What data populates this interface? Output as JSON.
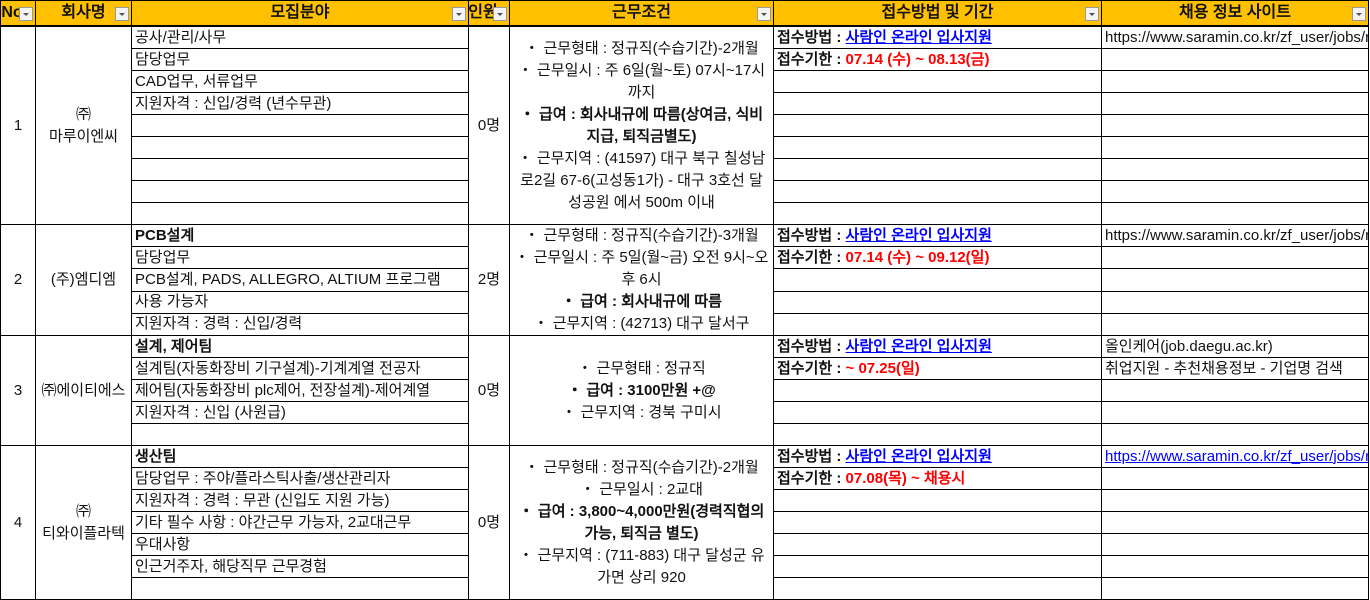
{
  "header": {
    "no": "No",
    "company": "회사명",
    "field": "모집분야",
    "count": "인원",
    "conditions": "근무조건",
    "apply": "접수방법 및 기간",
    "site": "채용 정보 사이트"
  },
  "colors": {
    "header_bg": "#ffc000",
    "method": "#0000ff",
    "deadline": "#ff0000"
  },
  "rows": [
    {
      "no": "1",
      "company": [
        "㈜",
        "마루이엔씨"
      ],
      "count": "0명",
      "fields": [
        {
          "text": "공사/관리/사무",
          "bold": false
        },
        {
          "text": "담당업무",
          "bold": false
        },
        {
          "text": "CAD업무, 서류업무",
          "bold": false
        },
        {
          "text": "지원자격 : 신입/경력 (년수무관)",
          "bold": false
        },
        {
          "text": "",
          "bold": false
        },
        {
          "text": "",
          "bold": false
        },
        {
          "text": "",
          "bold": false
        },
        {
          "text": "",
          "bold": false
        },
        {
          "text": "",
          "bold": false
        }
      ],
      "conditions": [
        {
          "text": "・ 근무형태 : 정규직(수습기간)-2개월",
          "bold": false
        },
        {
          "text": "・ 근무일시 : 주 6일(월~토) 07시~17시 까지",
          "bold": false
        },
        {
          "text": "・ 급여 : 회사내규에 따름(상여금, 식비지급, 퇴직금별도)",
          "bold": true
        },
        {
          "text": "・ 근무지역 : (41597) 대구 북구 칠성남로2길 67-6(고성동1가) - 대구 3호선 달성공원 에서 500m 이내",
          "bold": false
        }
      ],
      "method_label": "접수방법 : ",
      "method": "사람인 온라인 입사지원",
      "deadline_label": "접수기한 : ",
      "deadline": " 07.14 (수) ~ 08.13(금)",
      "site": [
        {
          "text": "https://www.saramin.co.kr/zf_user/jobs/relay/view",
          "link": false
        }
      ]
    },
    {
      "no": "2",
      "company": [
        "(주)엠디엠"
      ],
      "count": "2명",
      "fields": [
        {
          "text": "PCB설계",
          "bold": true
        },
        {
          "text": "담당업무",
          "bold": false
        },
        {
          "text": "PCB설계, PADS, ALLEGRO, ALTIUM 프로그램",
          "bold": false
        },
        {
          "text": "사용 가능자",
          "bold": false
        },
        {
          "text": "지원자격 : 경력 : 신입/경력",
          "bold": false
        }
      ],
      "conditions": [
        {
          "text": "・ 근무형태 : 정규직(수습기간)-3개월",
          "bold": false
        },
        {
          "text": "・ 근무일시 : 주 5일(월~금) 오전 9시~오후 6시",
          "bold": false
        },
        {
          "text": "・ 급여 : 회사내규에 따름",
          "bold": true
        },
        {
          "text": "・ 근무지역 : (42713) 대구 달서구",
          "bold": false
        }
      ],
      "method_label": "접수방법 : ",
      "method": "사람인 온라인 입사지원",
      "deadline_label": "접수기한 : ",
      "deadline": " 07.14 (수) ~ 09.12(일)",
      "site": [
        {
          "text": "https://www.saramin.co.kr/zf_user/jobs/relay/view",
          "link": false
        }
      ]
    },
    {
      "no": "3",
      "company": [
        "㈜에이티에스"
      ],
      "count": "0명",
      "fields": [
        {
          "text": "설계, 제어팀",
          "bold": true
        },
        {
          "text": "설계팀(자동화장비 기구설계)-기계계열 전공자",
          "bold": false
        },
        {
          "text": "제어팀(자동화장비 plc제어, 전장설계)-제어계열",
          "bold": false
        },
        {
          "text": "지원자격 : 신입 (사원급)",
          "bold": false
        },
        {
          "text": "",
          "bold": false
        }
      ],
      "conditions": [
        {
          "text": "・ 근무형태 : 정규직",
          "bold": false
        },
        {
          "text": "・ 급여 : 3100만원 +@",
          "bold": true
        },
        {
          "text": "・ 근무지역 : 경북 구미시",
          "bold": false
        }
      ],
      "method_label": "접수방법 : ",
      "method": "사람인 온라인 입사지원",
      "deadline_label": "접수기한 : ",
      "deadline": "~ 07.25(일)",
      "site": [
        {
          "text": "올인케어(job.daegu.ac.kr)",
          "link": false
        },
        {
          "text": "취업지원 - 추천채용정보 - 기업명 검색",
          "link": false
        }
      ]
    },
    {
      "no": "4",
      "company": [
        "㈜",
        "티와이플라텍"
      ],
      "count": "0명",
      "fields": [
        {
          "text": "생산팀",
          "bold": true
        },
        {
          "text": "담당업무 : 주야/플라스틱사출/생산관리자",
          "bold": false
        },
        {
          "text": "지원자격 : 경력 : 무관 (신입도 지원 가능)",
          "bold": false
        },
        {
          "text": "기타 필수 사항 : 야간근무 가능자, 2교대근무",
          "bold": false
        },
        {
          "text": "우대사항",
          "bold": false
        },
        {
          "text": "인근거주자, 해당직무 근무경험",
          "bold": false
        },
        {
          "text": "",
          "bold": false
        }
      ],
      "conditions": [
        {
          "text": "・ 근무형태 : 정규직(수습기간)-2개월",
          "bold": false
        },
        {
          "text": "・ 근무일시 : 2교대",
          "bold": false
        },
        {
          "text": "・ 급여 : 3,800~4,000만원(경력직협의가능, 퇴직금 별도)",
          "bold": true
        },
        {
          "text": "・ 근무지역 : (711-883) 대구 달성군 유가면 상리 920",
          "bold": false
        }
      ],
      "method_label": "접수방법 : ",
      "method": "사람인 온라인 입사지원",
      "deadline_label": "접수기한 : ",
      "deadline": "07.08(목) ~ 채용시",
      "site": [
        {
          "text": "https://www.saramin.co.kr/zf_user/jobs/relay/view",
          "link": true
        }
      ]
    }
  ]
}
